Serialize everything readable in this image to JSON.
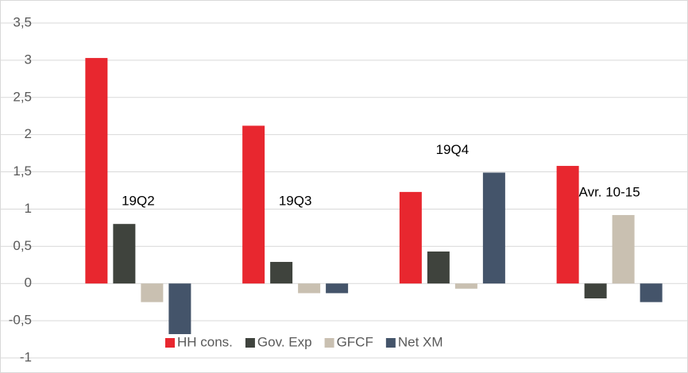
{
  "chart_data": {
    "type": "bar",
    "categories": [
      "19Q2",
      "19Q3",
      "19Q4",
      "Avr. 10-15"
    ],
    "series": [
      {
        "name": "HH cons.",
        "color": "#e8272f",
        "values": [
          3.03,
          2.12,
          1.23,
          1.58
        ]
      },
      {
        "name": "Gov. Exp",
        "color": "#3f433d",
        "values": [
          0.8,
          0.29,
          0.43,
          -0.2
        ]
      },
      {
        "name": "GFCF",
        "color": "#c9c0b1",
        "values": [
          -0.25,
          -0.13,
          -0.07,
          0.92
        ]
      },
      {
        "name": "Net XM",
        "color": "#44546a",
        "values": [
          -0.68,
          -0.13,
          1.49,
          -0.25
        ]
      }
    ],
    "ylim": [
      -1,
      3.5
    ],
    "yticks": [
      -1,
      {
        "value": -0.5,
        "label": "-0,5"
      },
      0,
      {
        "value": 0.5,
        "label": "0,5"
      },
      1,
      {
        "value": 1.5,
        "label": "1,5"
      },
      2,
      {
        "value": 2.5,
        "label": "2,5"
      },
      3,
      {
        "value": 3.5,
        "label": "3,5"
      }
    ],
    "grid": true,
    "legend": "bottom"
  }
}
